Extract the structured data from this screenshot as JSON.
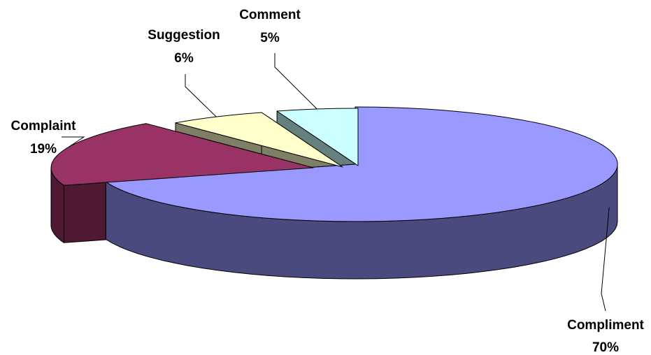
{
  "chart_data": {
    "type": "pie",
    "style": "3d-exploded",
    "title": "",
    "slices": [
      {
        "category": "Compliment",
        "value": 70,
        "label": "70%",
        "color": "#9999ff",
        "shade": "#4a4a7e"
      },
      {
        "category": "Complaint",
        "value": 19,
        "label": "19%",
        "color": "#993366",
        "shade": "#4f1932"
      },
      {
        "category": "Suggestion",
        "value": 6,
        "label": "6%",
        "color": "#ffffcc",
        "shade": "#7f7f66"
      },
      {
        "category": "Comment",
        "value": 5,
        "label": "5%",
        "color": "#ccffff",
        "shade": "#668080"
      }
    ],
    "legend": "none",
    "data_labels": "category and percentage, outside with leader lines"
  }
}
